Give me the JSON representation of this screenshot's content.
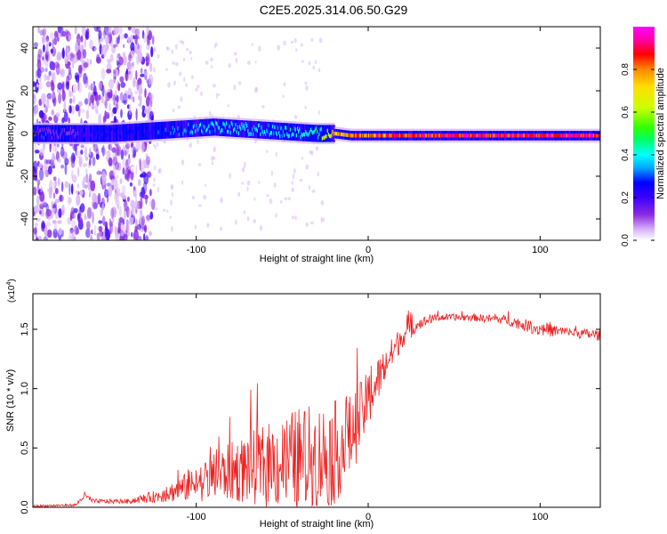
{
  "figure_title": "C2E5.2025.314.06.50.G29",
  "chart_data": [
    {
      "type": "heatmap",
      "title": "C2E5.2025.314.06.50.G29",
      "xlabel": "Height of straight line (km)",
      "ylabel": "Frequency (Hz)",
      "xlim": [
        -195,
        135
      ],
      "ylim": [
        -50,
        50
      ],
      "xticks": [
        -100,
        0,
        100
      ],
      "yticks": [
        -40,
        -20,
        0,
        20,
        40
      ],
      "colorbar": {
        "label": "Normalized spectral amplitude",
        "range": [
          0.0,
          1.0
        ],
        "ticks": [
          0.0,
          0.2,
          0.4,
          0.6,
          0.8
        ],
        "tick_labels": [
          "0.0",
          "0.2",
          "0.4",
          "0.6",
          "0.8"
        ],
        "colormap": [
          "#ffffff",
          "#d8b4f8",
          "#8a2be2",
          "#3b00ff",
          "#0000ff",
          "#00aaff",
          "#00ffff",
          "#00ff66",
          "#33ff00",
          "#ccff00",
          "#ffdd00",
          "#ff8800",
          "#ff0000",
          "#ff00aa",
          "#ff00ff"
        ]
      },
      "signal_trace": {
        "description_units": "Hz",
        "x": [
          -195,
          -170,
          -150,
          -130,
          -110,
          -90,
          -70,
          -50,
          -30,
          -20,
          -10,
          0,
          10,
          20,
          40,
          60,
          80,
          100,
          120,
          135
        ],
        "center_freq": [
          0,
          0,
          0,
          1,
          2,
          3,
          2,
          1,
          0,
          0,
          -1,
          -1,
          -1,
          -1,
          -1,
          -1,
          -1,
          -1,
          -1,
          -1
        ],
        "peak_amplitude": [
          0.15,
          0.2,
          0.3,
          0.3,
          0.35,
          0.45,
          0.45,
          0.45,
          0.5,
          0.8,
          0.85,
          0.9,
          0.9,
          0.95,
          0.95,
          0.95,
          0.95,
          0.95,
          0.95,
          0.95
        ]
      }
    },
    {
      "type": "line",
      "title": "",
      "xlabel": "Height of straight line (km)",
      "ylabel": "SNR (10 * v/v)",
      "multiplier_label": "(x10",
      "multiplier_exponent": "4",
      "multiplier_close": ")",
      "xlim": [
        -195,
        135
      ],
      "ylim": [
        0,
        1.8
      ],
      "xticks": [
        -100,
        0,
        100
      ],
      "yticks": [
        0,
        0.5,
        1.0,
        1.5
      ],
      "ytick_labels": [
        "0.0",
        "0.5",
        "1.0",
        "1.5"
      ],
      "series": [
        {
          "name": "SNR",
          "color": "#ee2222",
          "envelope_x": [
            -195,
            -170,
            -165,
            -160,
            -140,
            -120,
            -100,
            -80,
            -60,
            -40,
            -20,
            -10,
            0,
            10,
            20,
            30,
            40,
            60,
            80,
            100,
            120,
            135
          ],
          "envelope_mean": [
            0.01,
            0.02,
            0.1,
            0.05,
            0.05,
            0.1,
            0.2,
            0.3,
            0.35,
            0.4,
            0.45,
            0.6,
            0.9,
            1.2,
            1.45,
            1.55,
            1.6,
            1.6,
            1.58,
            1.5,
            1.47,
            1.45
          ],
          "envelope_noise": [
            0.01,
            0.01,
            0.03,
            0.02,
            0.02,
            0.06,
            0.15,
            0.25,
            0.35,
            0.45,
            0.45,
            0.35,
            0.25,
            0.15,
            0.1,
            0.05,
            0.03,
            0.03,
            0.04,
            0.06,
            0.04,
            0.05
          ]
        }
      ]
    }
  ]
}
